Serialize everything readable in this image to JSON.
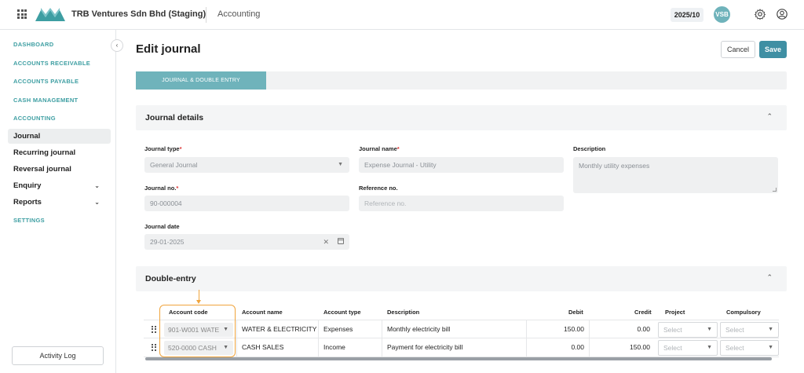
{
  "header": {
    "company": "TRB Ventures Sdn Bhd (Staging)",
    "module": "Accounting",
    "period": "2025/10",
    "avatar_initials": "VSB",
    "brand_color": "#3d9ea2"
  },
  "sidebar": {
    "sections": [
      {
        "label": "DASHBOARD"
      },
      {
        "label": "ACCOUNTS RECEIVABLE"
      },
      {
        "label": "ACCOUNTS PAYABLE"
      },
      {
        "label": "CASH MANAGEMENT"
      },
      {
        "label": "ACCOUNTING"
      }
    ],
    "items": [
      {
        "label": "Journal",
        "active": true
      },
      {
        "label": "Recurring journal"
      },
      {
        "label": "Reversal journal"
      },
      {
        "label": "Enquiry",
        "expandable": true
      },
      {
        "label": "Reports",
        "expandable": true
      }
    ],
    "settings": "SETTINGS",
    "activity_log": "Activity Log"
  },
  "page": {
    "title": "Edit journal",
    "cancel": "Cancel",
    "save": "Save",
    "tab": "JOURNAL & DOUBLE ENTRY"
  },
  "journal_details": {
    "title": "Journal details",
    "journal_type": {
      "label": "Journal type",
      "value": "General Journal"
    },
    "journal_name": {
      "label": "Journal name",
      "placeholder": "Expense Journal - Utility"
    },
    "description": {
      "label": "Description",
      "value": "Monthly utility expenses"
    },
    "journal_no": {
      "label": "Journal no.",
      "value": "90-000004"
    },
    "reference_no": {
      "label": "Reference no.",
      "placeholder": "Reference no."
    },
    "journal_date": {
      "label": "Journal date",
      "value": "29-01-2025"
    }
  },
  "double_entry": {
    "title": "Double-entry",
    "columns": {
      "account_code": "Account code",
      "account_name": "Account name",
      "account_type": "Account type",
      "description": "Description",
      "debit": "Debit",
      "credit": "Credit",
      "project": "Project",
      "compulsory": "Compulsory"
    },
    "rows": [
      {
        "account_code": "901-W001 WATE",
        "account_name": "WATER & ELECTRICITY",
        "account_type": "Expenses",
        "description": "Monthly electricity bill",
        "debit": "150.00",
        "credit": "0.00",
        "project": "Select",
        "compulsory": "Select"
      },
      {
        "account_code": "520-0000 CASH",
        "account_name": "CASH SALES",
        "account_type": "Income",
        "description": "Payment for electricity bill",
        "debit": "0.00",
        "credit": "150.00",
        "project": "Select",
        "compulsory": "Select"
      }
    ]
  }
}
